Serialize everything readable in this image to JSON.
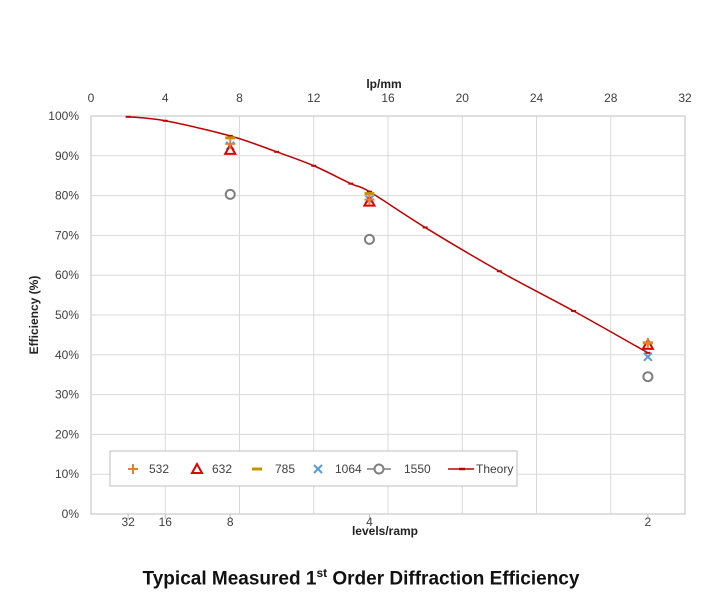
{
  "chart_data": {
    "type": "scatter",
    "title": "Typical Measured 1st Order Diffraction Efficiency",
    "caption": {
      "prefix": "Typical Measured 1",
      "superscript": "st",
      "suffix": " Order Diffraction Efficiency"
    },
    "ylabel": "Efficiency (%)",
    "xlabel_top": "lp/mm",
    "xlabel_bottom": "levels/ramp",
    "xlim": [
      0,
      32
    ],
    "ylim": [
      0,
      100
    ],
    "y_ticks": [
      0,
      10,
      20,
      30,
      40,
      50,
      60,
      70,
      80,
      90,
      100
    ],
    "y_tick_labels": [
      "0%",
      "10%",
      "20%",
      "30%",
      "40%",
      "50%",
      "60%",
      "70%",
      "80%",
      "90%",
      "100%"
    ],
    "x_ticks_top": [
      0,
      4,
      8,
      12,
      16,
      20,
      24,
      28,
      32
    ],
    "x_tick_labels_top": [
      "0",
      "4",
      "8",
      "12",
      "16",
      "20",
      "24",
      "28",
      "32"
    ],
    "x_ticks_bottom": [
      2,
      4,
      7.5,
      15,
      30
    ],
    "x_tick_labels_bottom": [
      "32",
      "16",
      "8",
      "4",
      "2"
    ],
    "grid": true,
    "legend_position": "bottom-left",
    "colors": {
      "532": "#ed7d31",
      "632": "#e00000",
      "785": "#c79100",
      "1064": "#5b9bd5",
      "1550": "#7f7f7f",
      "theory": "#c00000"
    },
    "series": [
      {
        "name": "532",
        "marker": "plus",
        "x": [
          7.5,
          15,
          30
        ],
        "y": [
          93,
          79,
          43
        ]
      },
      {
        "name": "632",
        "marker": "triangle",
        "x": [
          7.5,
          15,
          30
        ],
        "y": [
          91.5,
          78.5,
          42.5
        ]
      },
      {
        "name": "785",
        "marker": "dash",
        "x": [
          7.5,
          15,
          30
        ],
        "y": [
          94.5,
          80.5,
          43
        ]
      },
      {
        "name": "1064",
        "marker": "x",
        "x": [
          7.5,
          15,
          30
        ],
        "y": [
          92.5,
          79,
          39.5
        ]
      },
      {
        "name": "1550",
        "marker": "circle",
        "x": [
          7.5,
          15,
          30
        ],
        "y": [
          80.3,
          69,
          34.5
        ]
      },
      {
        "name": "Theory",
        "marker": "line",
        "x": [
          2,
          4,
          7.5,
          10,
          12,
          14,
          15,
          18,
          22,
          26,
          30
        ],
        "y": [
          99.8,
          98.8,
          95,
          91,
          87.5,
          83,
          81,
          72,
          61,
          51,
          40.5
        ]
      }
    ]
  }
}
